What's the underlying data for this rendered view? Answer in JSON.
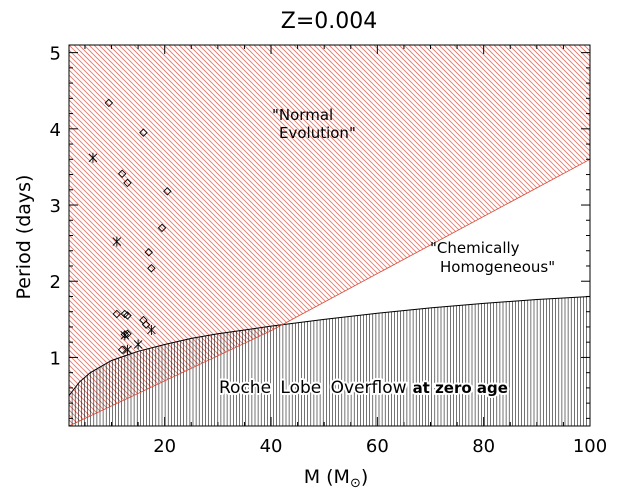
{
  "chart_data": {
    "type": "scatter",
    "title": "Z=0.004",
    "xlabel": "M (M",
    "xlabel_symbol": "⊙",
    "xlabel_close": ")",
    "ylabel": "Period (days)",
    "xlim": [
      2,
      100
    ],
    "ylim": [
      0.1,
      5.1
    ],
    "x_ticks": [
      20,
      40,
      60,
      80,
      100
    ],
    "y_ticks": [
      1,
      2,
      3,
      4,
      5
    ],
    "x_tick_labels": [
      "20",
      "40",
      "60",
      "80",
      "100"
    ],
    "y_tick_labels": [
      "1",
      "2",
      "3",
      "4",
      "5"
    ],
    "regions": [
      {
        "name": "Normal Evolution",
        "label_lines": [
          "\"Normal",
          "Evolution\""
        ],
        "color": "#e8776a",
        "hatch": "diagonal",
        "lower_boundary": {
          "x": [
            2,
            40,
            100
          ],
          "y": [
            0.1,
            1.35,
            3.6
          ]
        }
      },
      {
        "name": "Chemically Homogeneous",
        "label_lines": [
          "\"Chemically",
          "Homogeneous\""
        ],
        "color": "#ffffff"
      },
      {
        "name": "Roche Lobe Overflow at zero age",
        "label_main": "Roche Lobe Overflow",
        "label_bold": "at zero age",
        "color": "#000000",
        "hatch": "vertical",
        "upper_boundary": {
          "x": [
            2,
            4,
            6,
            10,
            15,
            20,
            25,
            30,
            35,
            40,
            50,
            60,
            70,
            80,
            90,
            100
          ],
          "y": [
            0.5,
            0.68,
            0.8,
            0.96,
            1.08,
            1.17,
            1.25,
            1.31,
            1.36,
            1.41,
            1.5,
            1.58,
            1.65,
            1.71,
            1.76,
            1.8
          ]
        }
      }
    ],
    "series": [
      {
        "name": "diamonds",
        "marker": "diamond",
        "points": [
          [
            9.5,
            4.34
          ],
          [
            16,
            3.95
          ],
          [
            12,
            3.41
          ],
          [
            13,
            3.29
          ],
          [
            20.5,
            3.18
          ],
          [
            19.5,
            2.7
          ],
          [
            17,
            2.38
          ],
          [
            17.5,
            2.17
          ],
          [
            11,
            1.57
          ],
          [
            12.5,
            1.57
          ],
          [
            13,
            1.55
          ],
          [
            16,
            1.49
          ],
          [
            16.5,
            1.43
          ],
          [
            12.5,
            1.3
          ],
          [
            13,
            1.31
          ],
          [
            12,
            1.1
          ]
        ]
      },
      {
        "name": "crosses",
        "marker": "asterisk",
        "points": [
          [
            6.5,
            3.62
          ],
          [
            11,
            2.52
          ],
          [
            12.5,
            1.29
          ],
          [
            17.5,
            1.36
          ],
          [
            15,
            1.17
          ],
          [
            13,
            1.1
          ]
        ]
      }
    ]
  }
}
